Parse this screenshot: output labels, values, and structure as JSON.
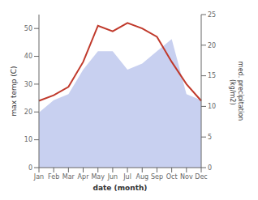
{
  "chart_data": {
    "type": "line",
    "categories": [
      "Jan",
      "Feb",
      "Mar",
      "Apr",
      "May",
      "Jun",
      "Jul",
      "Aug",
      "Sep",
      "Oct",
      "Nov",
      "Dec"
    ],
    "series": [
      {
        "type": "area",
        "axis": "y2",
        "color": "#c8d0f0",
        "values": [
          9,
          11,
          12,
          16,
          19,
          19,
          16,
          17,
          19,
          21,
          12,
          11
        ]
      },
      {
        "type": "line",
        "color": "#c0392b",
        "values": [
          24,
          26,
          29,
          38,
          51,
          49,
          52,
          50,
          47,
          38,
          30,
          24
        ]
      }
    ],
    "xlabel": "date (month)",
    "ylabel": "max temp (C)",
    "y2label": "med. precipitation\n (kg/m2)",
    "ylim": [
      0,
      55
    ],
    "yticks": [
      0,
      10,
      20,
      30,
      40,
      50
    ],
    "y2lim": [
      0,
      25
    ],
    "y2ticks": [
      0,
      5,
      10,
      15,
      20,
      25
    ],
    "grid": false
  }
}
